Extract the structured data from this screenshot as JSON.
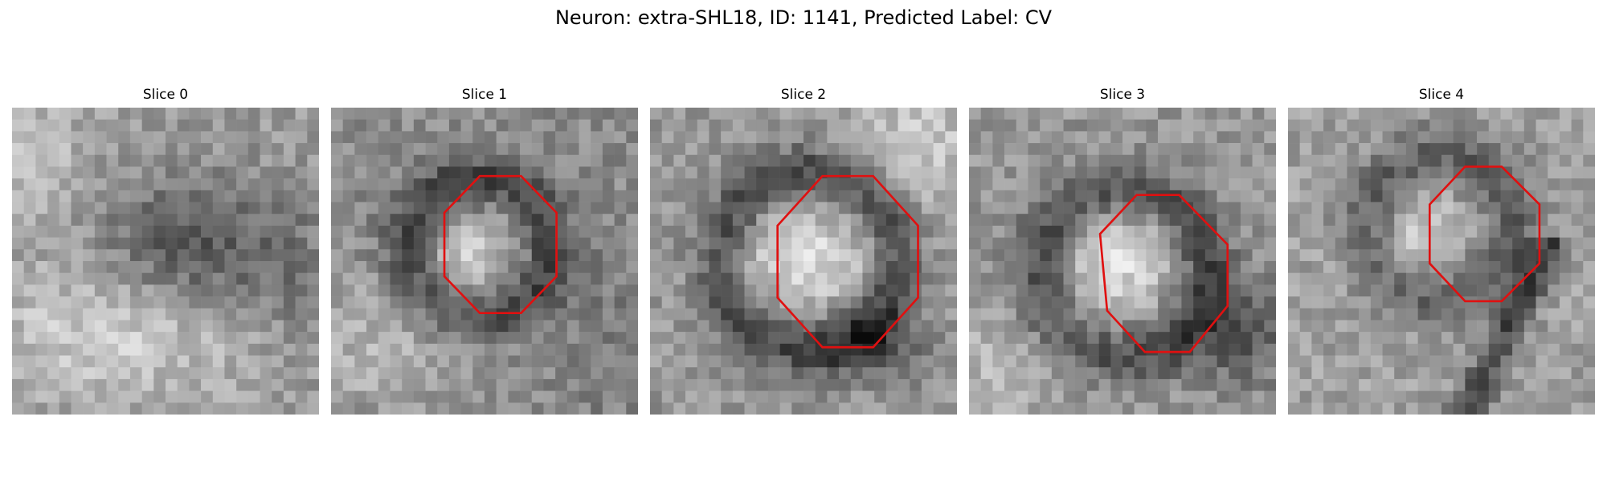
{
  "figure": {
    "title": "Neuron: extra-SHL18, ID: 1141, Predicted Label: CV"
  },
  "outline_color": "#e01010",
  "slices": [
    {
      "title": "Slice 0",
      "has_outline": false
    },
    {
      "title": "Slice 1",
      "has_outline": true
    },
    {
      "title": "Slice 2",
      "has_outline": true
    },
    {
      "title": "Slice 3",
      "has_outline": true
    },
    {
      "title": "Slice 4",
      "has_outline": true
    }
  ]
}
